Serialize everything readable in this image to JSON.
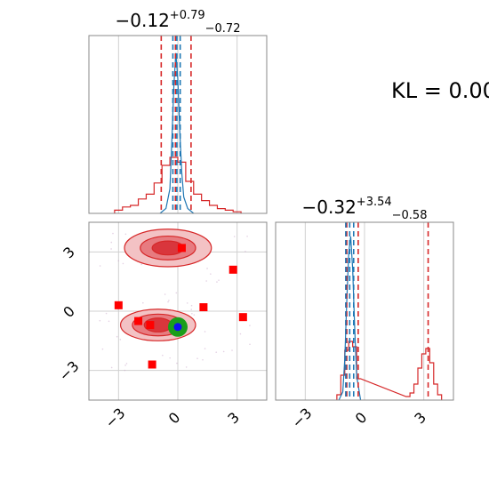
{
  "kl_text": "KL = 0.00",
  "chart_data": [
    {
      "type": "histogram",
      "panel": "parameter-1-marginal",
      "title": {
        "median": "−0.12",
        "plus": "+0.79",
        "minus": "−0.72"
      },
      "xlim": [
        -4.5,
        4.5
      ],
      "grid": true,
      "series": [
        {
          "name": "red-distribution",
          "color": "#d62728",
          "bins_x": [
            -3.0,
            -2.6,
            -2.2,
            -1.8,
            -1.4,
            -1.0,
            -0.6,
            -0.2,
            0.2,
            0.6,
            1.0,
            1.4,
            1.8,
            2.2,
            2.6,
            3.0
          ],
          "heights": [
            0.02,
            0.04,
            0.05,
            0.09,
            0.12,
            0.19,
            0.3,
            0.35,
            0.32,
            0.2,
            0.12,
            0.08,
            0.05,
            0.03,
            0.02,
            0.01
          ],
          "quantiles": [
            -0.84,
            -0.12,
            0.67
          ]
        },
        {
          "name": "blue-distribution",
          "color": "#1f77b4",
          "curve_x": [
            -0.9,
            -0.6,
            -0.4,
            -0.3,
            -0.2,
            -0.1,
            0.0,
            0.1,
            0.2,
            0.3,
            0.5,
            0.8
          ],
          "curve_y": [
            0.0,
            0.03,
            0.15,
            0.45,
            0.78,
            0.98,
            0.82,
            0.5,
            0.25,
            0.1,
            0.03,
            0.0
          ],
          "quantiles": [
            -0.25,
            -0.05,
            0.12
          ]
        }
      ]
    },
    {
      "type": "histogram",
      "panel": "parameter-2-marginal",
      "title": {
        "median": "−0.32",
        "plus": "+3.54",
        "minus": "−0.58"
      },
      "xlim": [
        -4.5,
        4.5
      ],
      "xticks": [
        "−3",
        "0",
        "3"
      ],
      "grid": true,
      "series": [
        {
          "name": "red-distribution",
          "color": "#d62728",
          "bins_x": [
            -1.3,
            -1.1,
            -0.9,
            -0.7,
            -0.5,
            -0.3,
            2.2,
            2.4,
            2.6,
            2.8,
            3.0,
            3.2,
            3.4,
            3.6,
            3.8
          ],
          "heights": [
            0.03,
            0.14,
            0.28,
            0.33,
            0.3,
            0.12,
            0.02,
            0.04,
            0.09,
            0.18,
            0.26,
            0.29,
            0.21,
            0.09,
            0.03
          ],
          "quantiles": [
            -0.9,
            -0.32,
            3.22
          ]
        },
        {
          "name": "blue-distribution",
          "color": "#1f77b4",
          "curve_x": [
            -1.3,
            -1.1,
            -1.0,
            -0.9,
            -0.8,
            -0.7,
            -0.6,
            -0.5,
            -0.4,
            -0.2
          ],
          "curve_y": [
            0.0,
            0.05,
            0.25,
            0.6,
            0.9,
            1.0,
            0.8,
            0.45,
            0.15,
            0.0
          ],
          "quantiles": [
            -0.95,
            -0.75,
            -0.55
          ]
        }
      ]
    },
    {
      "type": "scatter",
      "panel": "joint-2d",
      "xlim": [
        -4.5,
        4.5
      ],
      "ylim": [
        -4.5,
        4.5
      ],
      "xticks": [
        "−3",
        "0",
        "3"
      ],
      "yticks": [
        "3",
        "0",
        "−3"
      ],
      "grid": true,
      "points": {
        "name": "red-square-samples",
        "color": "#ff0000",
        "x": [
          0.2,
          2.8,
          -3.0,
          -2.0,
          -1.4,
          1.3,
          3.3,
          -1.3
        ],
        "y": [
          3.2,
          2.1,
          0.3,
          -0.5,
          -0.7,
          0.2,
          -0.3,
          -2.7
        ]
      },
      "contours": [
        {
          "name": "upper-mode",
          "color": "#d62728",
          "center": [
            -0.5,
            3.2
          ],
          "levels": [
            [
              2.2,
              0.95
            ],
            [
              1.4,
              0.6
            ],
            [
              0.8,
              0.35
            ]
          ]
        },
        {
          "name": "lower-mode",
          "color": "#d62728",
          "center": [
            -1.0,
            -0.7
          ],
          "levels": [
            [
              1.9,
              0.8
            ],
            [
              1.3,
              0.55
            ],
            [
              0.7,
              0.35
            ]
          ]
        }
      ],
      "truth": {
        "green_circle": [
          0.0,
          -0.8
        ],
        "blue_point": [
          0.0,
          -0.8
        ]
      }
    }
  ]
}
